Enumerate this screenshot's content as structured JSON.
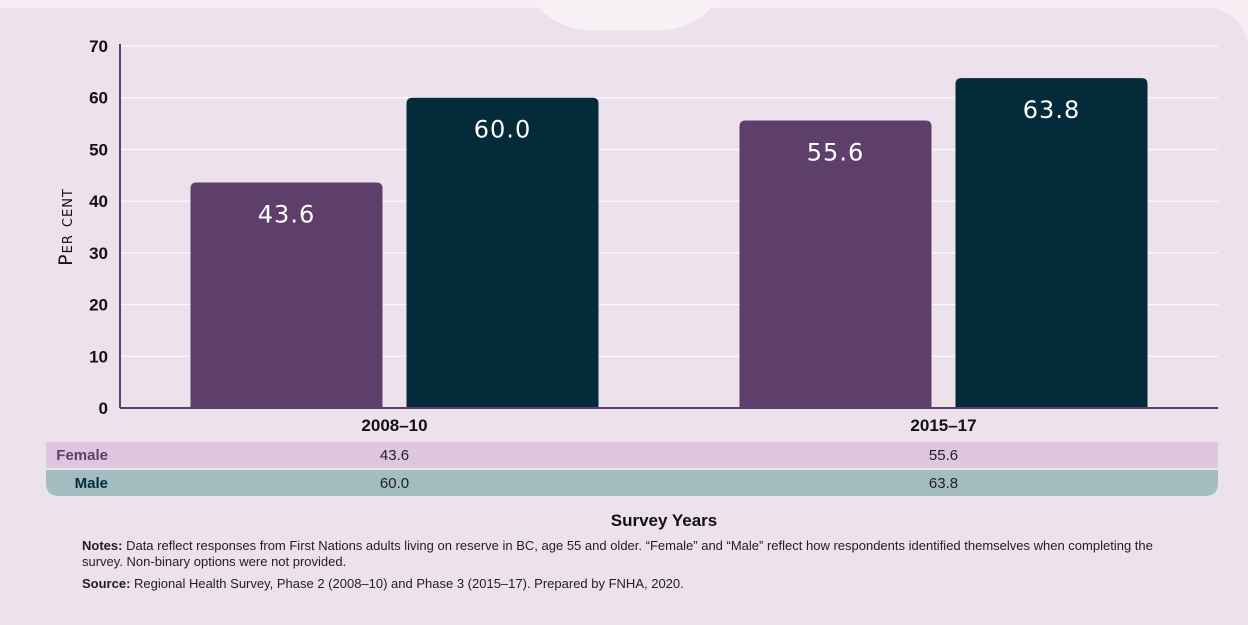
{
  "chart_data": {
    "type": "bar",
    "categories": [
      "2008–10",
      "2015–17"
    ],
    "series": [
      {
        "name": "Female",
        "values": [
          43.6,
          55.6
        ],
        "color": "#5e3f6b"
      },
      {
        "name": "Male",
        "values": [
          60.0,
          63.8
        ],
        "color": "#042b3a"
      }
    ],
    "value_labels": [
      [
        "43.6",
        "55.6"
      ],
      [
        "60.0",
        "63.8"
      ]
    ],
    "ylabel": "Per cent",
    "xlabel": "Survey Years",
    "ylim": [
      0,
      70
    ],
    "yticks": [
      "0",
      "10",
      "20",
      "30",
      "40",
      "50",
      "60",
      "70"
    ],
    "grid": true,
    "data_table": true
  },
  "notes": {
    "label": "Notes:",
    "text": "Data reflect responses from First Nations adults living on reserve in BC, age 55 and older. “Female” and “Male” reflect how respondents identified themselves when completing the survey. Non-binary options were not provided."
  },
  "source": {
    "label": "Source:",
    "text": "Regional Health Survey, Phase 2 (2008–10) and Phase 3 (2015–17). Prepared by FNHA, 2020."
  },
  "colors": {
    "female_row": "#dfc6e0",
    "male_row": "#a2bcc0",
    "grid": "#ffffff",
    "axis": "#5e3f6b"
  }
}
